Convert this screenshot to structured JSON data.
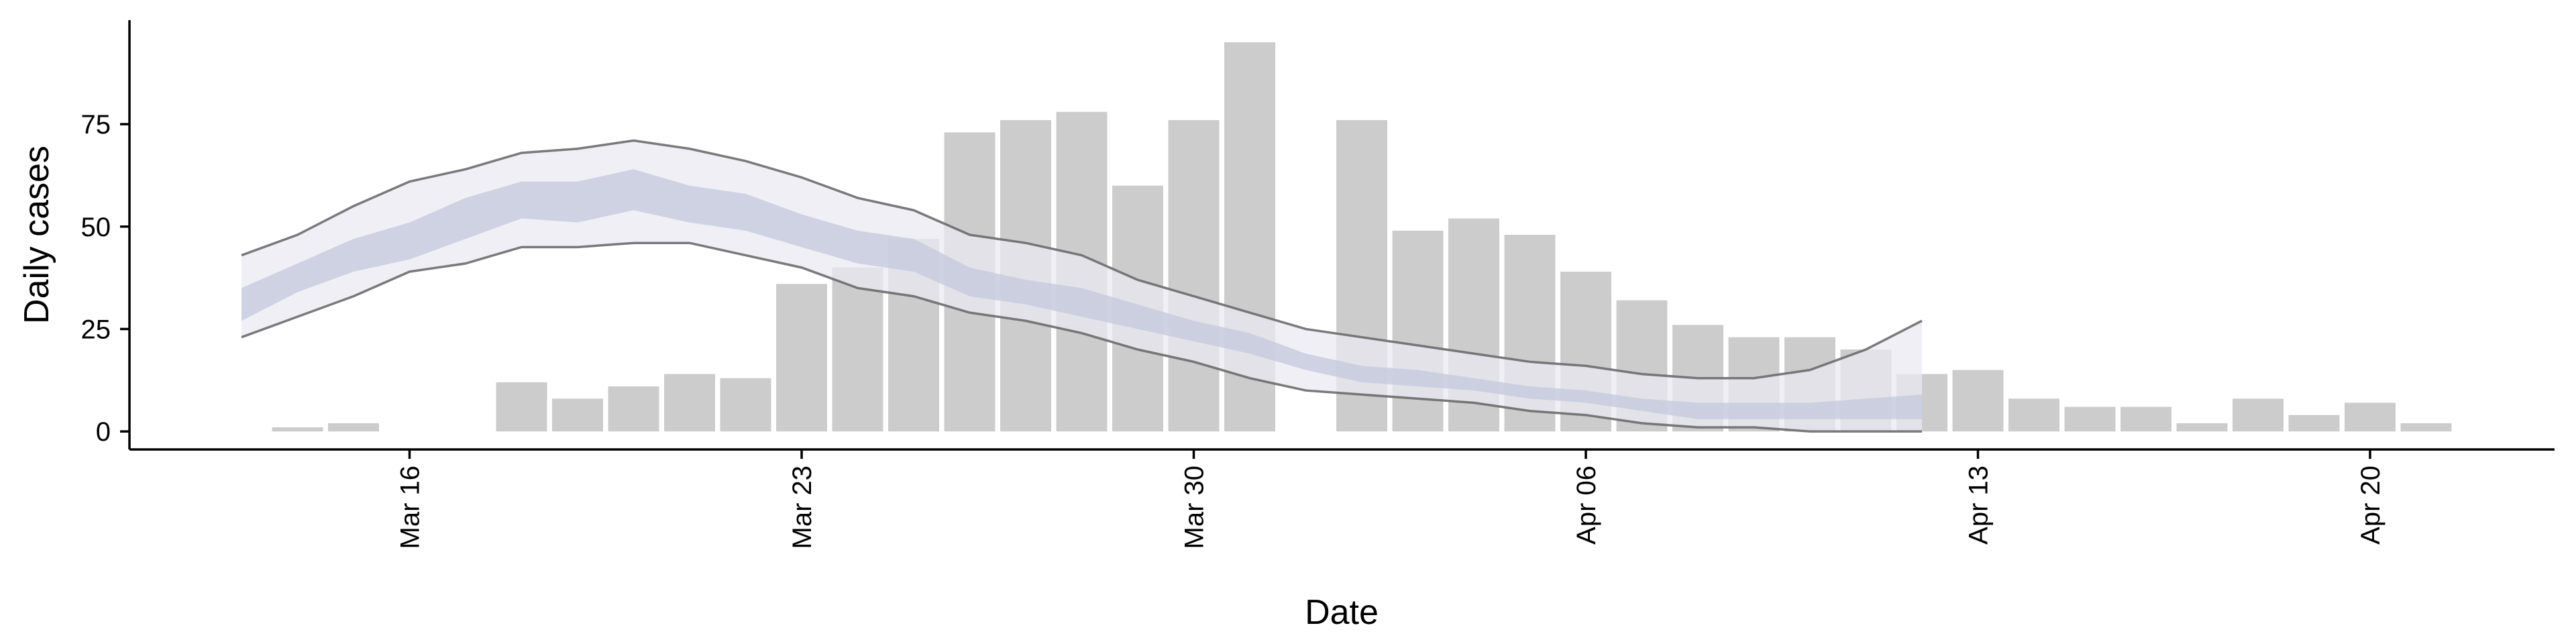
{
  "chart_data": {
    "type": "bar-ribbon",
    "x_label": "Date",
    "y_label": "Daily cases",
    "categories": [
      null,
      null,
      null,
      "Mar 16",
      null,
      null,
      null,
      null,
      null,
      null,
      "Mar 23",
      null,
      null,
      null,
      null,
      null,
      null,
      "Mar 30",
      null,
      null,
      null,
      null,
      null,
      null,
      "Apr 06",
      null,
      null,
      null,
      null,
      null,
      null,
      "Apr 13",
      null,
      null,
      null,
      null,
      null,
      null,
      "Apr 20",
      null
    ],
    "bar_color": "#cccccc",
    "values": [
      null,
      1,
      2,
      null,
      null,
      12,
      8,
      11,
      14,
      13,
      36,
      40,
      47,
      73,
      76,
      78,
      60,
      76,
      95,
      null,
      76,
      49,
      52,
      48,
      39,
      32,
      26,
      23,
      23,
      20,
      14,
      15,
      8,
      6,
      6,
      2,
      8,
      4,
      7,
      2
    ],
    "outer_band": {
      "fill": "#e9eaf1",
      "line_color": "#6b6b6b",
      "upper": [
        43,
        48,
        55,
        61,
        64,
        68,
        69,
        71,
        69,
        66,
        62,
        57,
        54,
        48,
        46,
        43,
        37,
        33,
        29,
        25,
        23,
        21,
        19,
        17,
        16,
        14,
        13,
        13,
        15,
        20,
        27,
        null,
        null,
        null,
        null,
        null,
        null,
        null,
        null,
        null
      ],
      "lower": [
        23,
        28,
        33,
        39,
        41,
        45,
        45,
        46,
        46,
        43,
        40,
        35,
        33,
        29,
        27,
        24,
        20,
        17,
        13,
        10,
        9,
        8,
        7,
        5,
        4,
        2,
        1,
        1,
        0,
        0,
        0,
        null,
        null,
        null,
        null,
        null,
        null,
        null,
        null,
        null
      ]
    },
    "inner_band": {
      "fill": "#c6cbdd",
      "upper": [
        35,
        41,
        47,
        51,
        57,
        61,
        61,
        64,
        60,
        58,
        53,
        49,
        47,
        40,
        37,
        35,
        31,
        27,
        24,
        19,
        16,
        15,
        13,
        11,
        10,
        8,
        7,
        7,
        7,
        8,
        9,
        null,
        null,
        null,
        null,
        null,
        null,
        null,
        null,
        null
      ],
      "lower": [
        27,
        34,
        39,
        42,
        47,
        52,
        51,
        54,
        51,
        49,
        45,
        41,
        39,
        33,
        31,
        28,
        25,
        22,
        19,
        15,
        12,
        11,
        10,
        8,
        7,
        5,
        3,
        3,
        3,
        3,
        3,
        null,
        null,
        null,
        null,
        null,
        null,
        null,
        null,
        null
      ]
    },
    "ylim": [
      -4.4,
      100.4
    ],
    "yticks": [
      0,
      25,
      50,
      75
    ]
  }
}
